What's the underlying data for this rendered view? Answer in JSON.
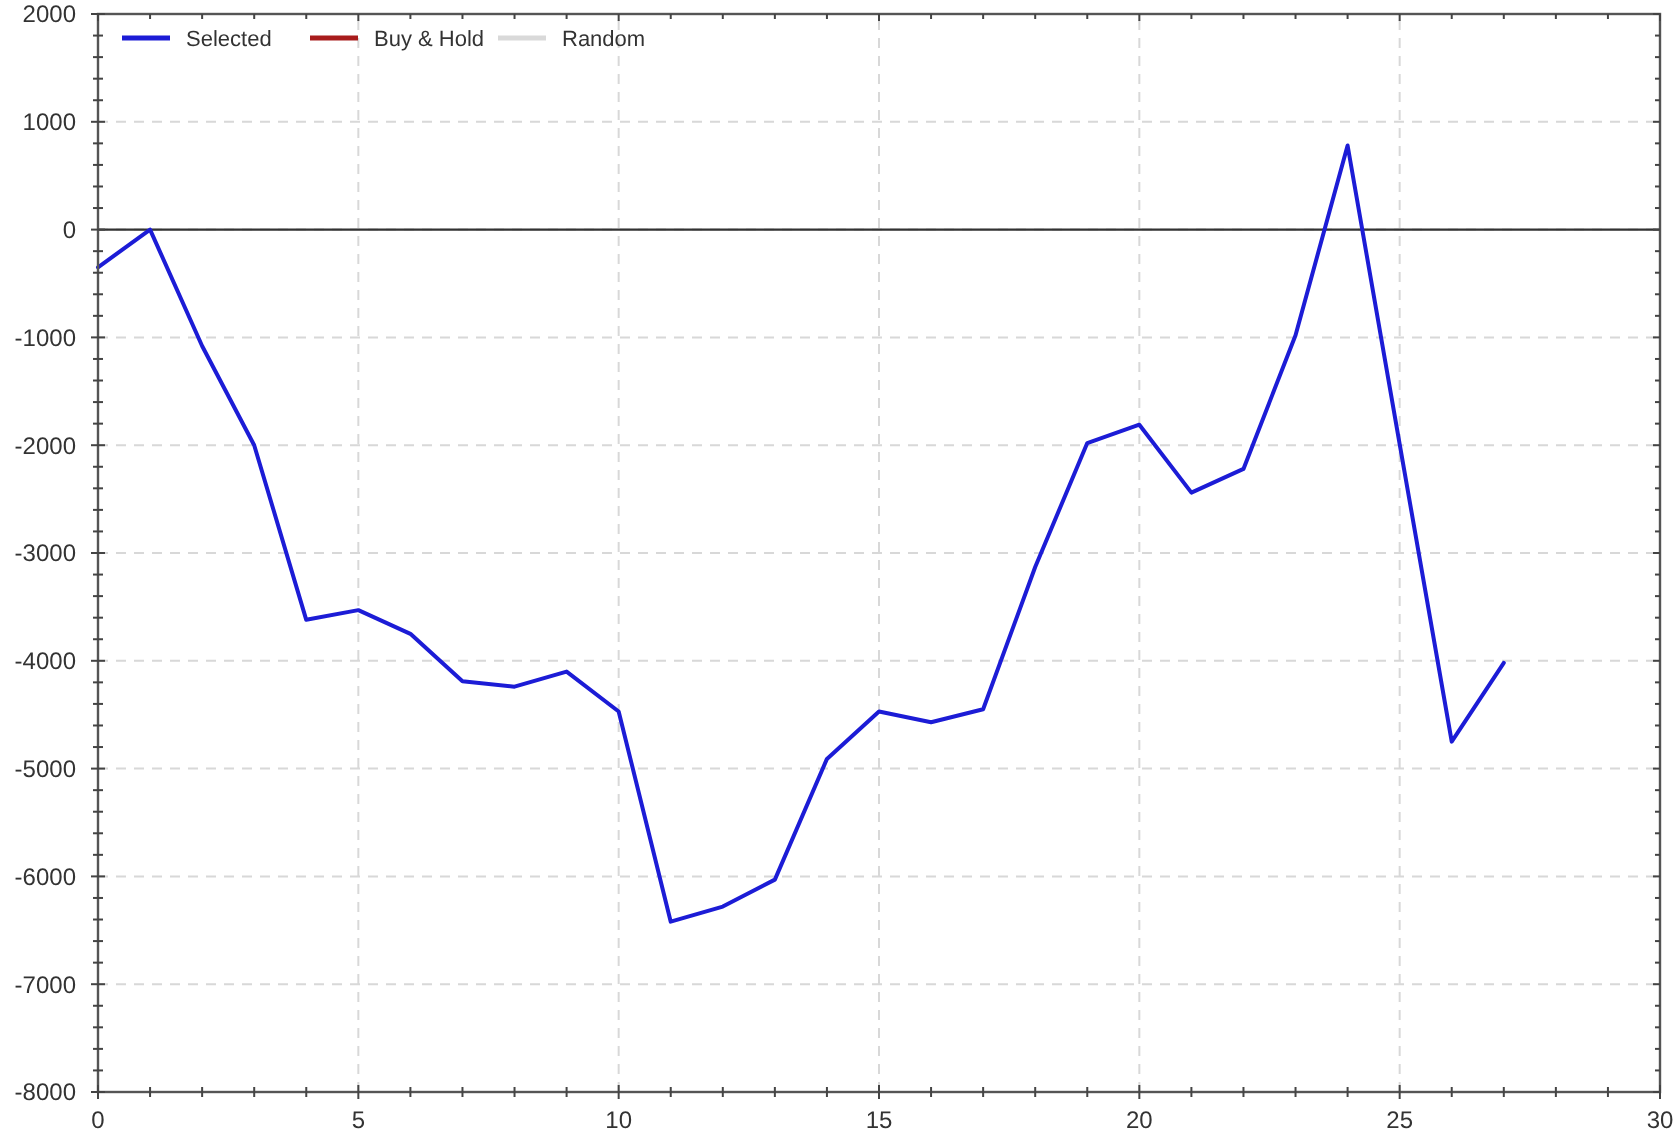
{
  "chart_data": {
    "type": "line",
    "x": [
      0,
      1,
      2,
      3,
      4,
      5,
      6,
      7,
      8,
      9,
      10,
      11,
      12,
      13,
      14,
      15,
      16,
      17,
      18,
      19,
      20,
      21,
      22,
      23,
      24,
      25,
      26,
      27
    ],
    "series": [
      {
        "name": "Selected",
        "color": "#1c1cd6",
        "values": [
          -350,
          0,
          -1080,
          -2000,
          -3620,
          -3530,
          -3750,
          -4190,
          -4240,
          -4100,
          -4470,
          -6420,
          -6280,
          -6030,
          -4910,
          -4470,
          -4570,
          -4450,
          -3130,
          -1980,
          -1810,
          -2440,
          -2220,
          -980,
          780,
          -1990,
          -4750,
          -4020
        ]
      },
      {
        "name": "Buy & Hold",
        "color": "#a81c1c",
        "values": [
          null,
          null,
          null,
          null,
          null,
          null,
          null,
          null,
          null,
          null,
          null,
          null,
          null,
          null,
          null,
          null,
          null,
          null,
          null,
          null,
          null,
          null,
          null,
          null,
          null,
          null,
          null,
          null
        ]
      },
      {
        "name": "Random",
        "color": "#d9d9d9",
        "values": [
          null,
          null,
          null,
          null,
          null,
          null,
          null,
          null,
          null,
          null,
          null,
          null,
          null,
          null,
          null,
          null,
          null,
          null,
          null,
          null,
          null,
          null,
          null,
          null,
          null,
          null,
          null,
          null
        ]
      }
    ],
    "xlim": [
      0,
      30
    ],
    "xticks": [
      0,
      {
        "value": 1,
        "label": null
      },
      {
        "value": 2,
        "label": null
      },
      {
        "value": 3,
        "label": null
      },
      {
        "value": 4,
        "label": null
      },
      5,
      {
        "value": 6,
        "label": null
      },
      {
        "value": 7,
        "label": null
      },
      {
        "value": 8,
        "label": null
      },
      {
        "value": 9,
        "label": null
      },
      10,
      {
        "value": 11,
        "label": null
      },
      {
        "value": 12,
        "label": null
      },
      {
        "value": 13,
        "label": null
      },
      {
        "value": 14,
        "label": null
      },
      15,
      {
        "value": 16,
        "label": null
      },
      {
        "value": 17,
        "label": null
      },
      {
        "value": 18,
        "label": null
      },
      {
        "value": 19,
        "label": null
      },
      20,
      {
        "value": 21,
        "label": null
      },
      {
        "value": 22,
        "label": null
      },
      {
        "value": 23,
        "label": null
      },
      {
        "value": 24,
        "label": null
      },
      25,
      {
        "value": 26,
        "label": null
      },
      {
        "value": 27,
        "label": null
      },
      {
        "value": 28,
        "label": null
      },
      {
        "value": 29,
        "label": null
      },
      30
    ],
    "ylim": [
      -8000,
      2000
    ],
    "yticks": [
      -8000,
      {
        "value": -7800,
        "label": null
      },
      {
        "value": -7600,
        "label": null
      },
      {
        "value": -7400,
        "label": null
      },
      {
        "value": -7200,
        "label": null
      },
      -7000,
      {
        "value": -6800,
        "label": null
      },
      {
        "value": -6600,
        "label": null
      },
      {
        "value": -6400,
        "label": null
      },
      {
        "value": -6200,
        "label": null
      },
      -6000,
      {
        "value": -5800,
        "label": null
      },
      {
        "value": -5600,
        "label": null
      },
      {
        "value": -5400,
        "label": null
      },
      {
        "value": -5200,
        "label": null
      },
      -5000,
      {
        "value": -4800,
        "label": null
      },
      {
        "value": -4600,
        "label": null
      },
      {
        "value": -4400,
        "label": null
      },
      {
        "value": -4200,
        "label": null
      },
      -4000,
      {
        "value": -3800,
        "label": null
      },
      {
        "value": -3600,
        "label": null
      },
      {
        "value": -3400,
        "label": null
      },
      {
        "value": -3200,
        "label": null
      },
      -3000,
      {
        "value": -2800,
        "label": null
      },
      {
        "value": -2600,
        "label": null
      },
      {
        "value": -2400,
        "label": null
      },
      {
        "value": -2200,
        "label": null
      },
      -2000,
      {
        "value": -1800,
        "label": null
      },
      {
        "value": -1600,
        "label": null
      },
      {
        "value": -1400,
        "label": null
      },
      {
        "value": -1200,
        "label": null
      },
      -1000,
      {
        "value": -800,
        "label": null
      },
      {
        "value": -600,
        "label": null
      },
      {
        "value": -400,
        "label": null
      },
      {
        "value": -200,
        "label": null
      },
      0,
      {
        "value": 200,
        "label": null
      },
      {
        "value": 400,
        "label": null
      },
      {
        "value": 600,
        "label": null
      },
      {
        "value": 800,
        "label": null
      },
      1000,
      {
        "value": 1200,
        "label": null
      },
      {
        "value": 1400,
        "label": null
      },
      {
        "value": 1600,
        "label": null
      },
      {
        "value": 1800,
        "label": null
      },
      2000
    ],
    "grid": true,
    "legend": "top left",
    "ref_lines": [
      {
        "axis": "y",
        "value": 0,
        "color": "#333333"
      }
    ]
  }
}
